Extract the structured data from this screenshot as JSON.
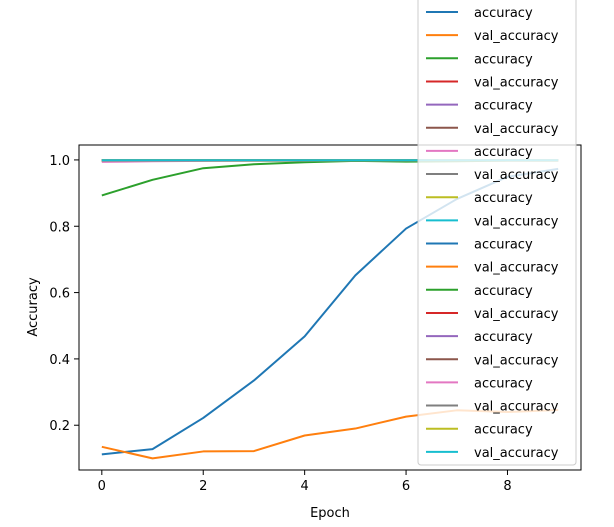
{
  "chart_data": {
    "type": "line",
    "title": "",
    "xlabel": "Epoch",
    "ylabel": "Accuracy",
    "xlim": [
      -0.45,
      9.45
    ],
    "ylim": [
      0.065,
      1.045
    ],
    "xticks": [
      0,
      2,
      4,
      6,
      8
    ],
    "yticks": [
      0.2,
      0.4,
      0.6,
      0.8,
      1.0
    ],
    "xtick_labels": [
      "0",
      "2",
      "4",
      "6",
      "8"
    ],
    "ytick_labels": [
      "0.2",
      "0.4",
      "0.6",
      "0.8",
      "1.0"
    ],
    "grid": false,
    "legend_position": "upper-right",
    "x": [
      0,
      1,
      2,
      3,
      4,
      5,
      6,
      7,
      8,
      9
    ],
    "series": [
      {
        "name": "accuracy",
        "color": "#1f77b4",
        "values": [
          0.998,
          0.999,
          0.999,
          0.999,
          0.999,
          0.999,
          0.999,
          0.999,
          0.999,
          0.999
        ]
      },
      {
        "name": "val_accuracy",
        "color": "#ff7f0e",
        "values": [
          0.997,
          0.998,
          0.998,
          0.998,
          0.998,
          0.998,
          0.998,
          0.998,
          0.998,
          0.998
        ]
      },
      {
        "name": "accuracy",
        "color": "#2ca02c",
        "values": [
          0.893,
          0.94,
          0.975,
          0.987,
          0.993,
          0.997,
          0.995,
          0.996,
          0.998,
          0.998
        ]
      },
      {
        "name": "val_accuracy",
        "color": "#d62728",
        "values": [
          0.999,
          0.999,
          0.999,
          0.999,
          0.999,
          0.999,
          0.999,
          0.999,
          0.999,
          0.999
        ]
      },
      {
        "name": "accuracy",
        "color": "#9467bd",
        "values": [
          0.999,
          0.999,
          0.999,
          0.999,
          0.999,
          0.999,
          0.999,
          0.999,
          0.999,
          0.999
        ]
      },
      {
        "name": "val_accuracy",
        "color": "#8c564b",
        "values": [
          0.999,
          0.999,
          0.999,
          0.999,
          0.999,
          0.999,
          0.999,
          0.999,
          0.999,
          0.999
        ]
      },
      {
        "name": "accuracy",
        "color": "#e377c2",
        "values": [
          0.994,
          0.996,
          0.997,
          0.998,
          0.998,
          0.999,
          0.999,
          0.999,
          0.999,
          0.999
        ]
      },
      {
        "name": "val_accuracy",
        "color": "#7f7f7f",
        "values": [
          0.998,
          0.998,
          0.998,
          0.998,
          0.998,
          0.998,
          0.998,
          0.998,
          0.998,
          0.998
        ]
      },
      {
        "name": "accuracy",
        "color": "#bcbd22",
        "values": [
          0.999,
          0.999,
          0.999,
          0.999,
          0.999,
          0.999,
          0.999,
          0.999,
          0.999,
          0.999
        ]
      },
      {
        "name": "val_accuracy",
        "color": "#17becf",
        "values": [
          0.999,
          0.999,
          0.999,
          0.999,
          0.999,
          0.999,
          0.999,
          0.999,
          0.999,
          0.999
        ]
      },
      {
        "name": "accuracy",
        "color": "#1f77b4",
        "values": [
          0.112,
          0.128,
          0.222,
          0.335,
          0.468,
          0.652,
          0.793,
          0.882,
          0.949,
          0.973
        ]
      },
      {
        "name": "val_accuracy",
        "color": "#ff7f0e",
        "values": [
          0.135,
          0.1,
          0.121,
          0.122,
          0.169,
          0.19,
          0.226,
          0.245,
          0.24,
          0.246
        ]
      },
      {
        "name": "accuracy",
        "color": "#2ca02c",
        "values": [
          0.999,
          0.999,
          0.999,
          0.999,
          0.999,
          0.999,
          0.999,
          0.999,
          0.999,
          0.999
        ]
      },
      {
        "name": "val_accuracy",
        "color": "#d62728",
        "values": [
          0.999,
          0.999,
          0.999,
          0.999,
          0.999,
          0.999,
          0.999,
          0.999,
          0.999,
          0.999
        ]
      },
      {
        "name": "accuracy",
        "color": "#9467bd",
        "values": [
          0.999,
          0.999,
          0.999,
          0.999,
          0.999,
          0.999,
          0.999,
          0.999,
          0.999,
          0.999
        ]
      },
      {
        "name": "val_accuracy",
        "color": "#8c564b",
        "values": [
          0.999,
          0.999,
          0.999,
          0.999,
          0.999,
          0.999,
          0.999,
          0.999,
          0.999,
          0.999
        ]
      },
      {
        "name": "accuracy",
        "color": "#e377c2",
        "values": [
          0.999,
          0.999,
          0.999,
          0.999,
          0.999,
          0.999,
          0.999,
          0.999,
          0.999,
          0.999
        ]
      },
      {
        "name": "val_accuracy",
        "color": "#7f7f7f",
        "values": [
          0.999,
          0.999,
          0.999,
          0.999,
          0.999,
          0.999,
          0.999,
          0.999,
          0.999,
          0.999
        ]
      },
      {
        "name": "accuracy",
        "color": "#bcbd22",
        "values": [
          0.999,
          0.999,
          0.999,
          0.999,
          0.999,
          0.999,
          0.999,
          0.999,
          0.999,
          0.999
        ]
      },
      {
        "name": "val_accuracy",
        "color": "#17becf",
        "values": [
          0.999,
          0.999,
          0.999,
          0.999,
          0.999,
          0.999,
          0.999,
          0.999,
          0.999,
          0.999
        ]
      }
    ]
  }
}
